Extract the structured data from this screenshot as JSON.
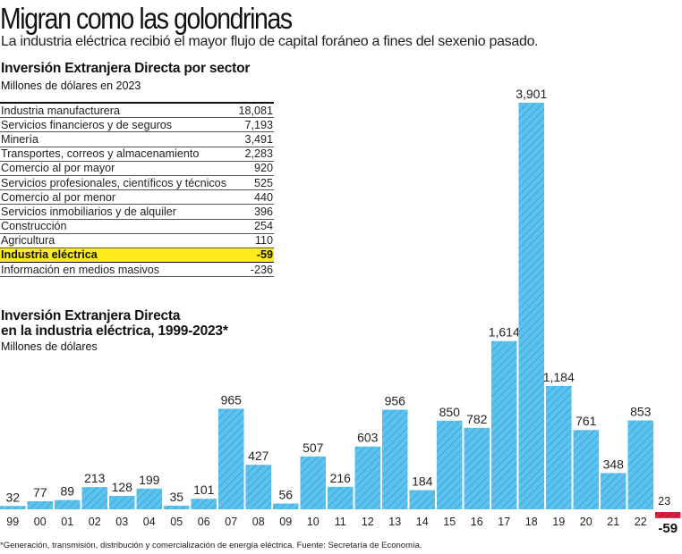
{
  "header": {
    "title": "Migran como las golondrinas",
    "subtitle": "La industria eléctrica recibió el mayor flujo de capital foráneo a fines del sexenio pasado."
  },
  "sector_table": {
    "title": "Inversión Extranjera Directa por sector",
    "subtitle": "Millones de dólares en 2023",
    "rows": [
      {
        "label": "Industria manufacturera",
        "value": "18,081",
        "highlight": false
      },
      {
        "label": "Servicios financieros y de seguros",
        "value": "7,193",
        "highlight": false
      },
      {
        "label": "Minería",
        "value": "3,491",
        "highlight": false
      },
      {
        "label": "Transportes, correos y almacenamiento",
        "value": "2,283",
        "highlight": false
      },
      {
        "label": "Comercio al por mayor",
        "value": "920",
        "highlight": false
      },
      {
        "label": "Servicios profesionales, científicos y técnicos",
        "value": "525",
        "highlight": false
      },
      {
        "label": "Comercio al por menor",
        "value": "440",
        "highlight": false
      },
      {
        "label": "Servicios inmobiliarios y de alquiler",
        "value": "396",
        "highlight": false
      },
      {
        "label": "Construcción",
        "value": "254",
        "highlight": false
      },
      {
        "label": "Agricultura",
        "value": "110",
        "highlight": false
      },
      {
        "label": "Industria eléctrica",
        "value": "-59",
        "highlight": true
      },
      {
        "label": "Información en medios masivos",
        "value": "-236",
        "highlight": false
      }
    ],
    "highlight_color": "#ffec1a"
  },
  "chart_data": {
    "type": "bar",
    "title": "Inversión Extranjera Directa en la industria eléctrica, 1999-2023*",
    "title_lines": [
      "Inversión Extranjera Directa",
      "en la industria eléctrica, 1999-2023*"
    ],
    "subtitle": "Millones de dólares",
    "xlabel": "",
    "ylabel": "Millones de dólares",
    "categories": [
      "99",
      "00",
      "01",
      "02",
      "03",
      "04",
      "05",
      "06",
      "07",
      "08",
      "09",
      "10",
      "11",
      "12",
      "13",
      "14",
      "15",
      "16",
      "17",
      "18",
      "19",
      "20",
      "21",
      "22",
      "23"
    ],
    "values": [
      32,
      77,
      89,
      213,
      128,
      199,
      35,
      101,
      965,
      427,
      56,
      507,
      216,
      603,
      956,
      184,
      850,
      782,
      1614,
      3901,
      1184,
      761,
      348,
      853,
      -59
    ],
    "value_labels": [
      "32",
      "77",
      "89",
      "213",
      "128",
      "199",
      "35",
      "101",
      "965",
      "427",
      "56",
      "507",
      "216",
      "603",
      "956",
      "184",
      "850",
      "782",
      "1,614",
      "3,901",
      "1,184",
      "761",
      "348",
      "853",
      "-59"
    ],
    "ylim": [
      -59,
      3901
    ],
    "grid": false,
    "legend": "none",
    "colors": {
      "positive": "#5bc3ee",
      "negative": "#d9203e",
      "hatch": "#3a8fbf"
    }
  },
  "footnote": "*Generación, transmisión, distribución y comercialización de energía eléctrica. Fuente: Secretaría de Economía."
}
